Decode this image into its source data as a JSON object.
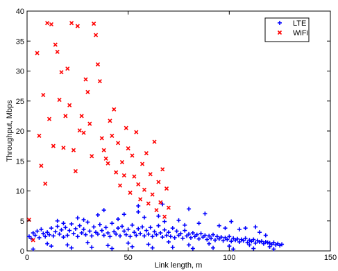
{
  "chart_data": {
    "type": "scatter",
    "xlabel": "Link length, m",
    "ylabel": "Throughput, Mbps",
    "xlim": [
      0,
      150
    ],
    "ylim": [
      0,
      40
    ],
    "xticks": [
      0,
      50,
      100,
      150
    ],
    "yticks": [
      0,
      5,
      10,
      15,
      20,
      25,
      30,
      35,
      40
    ],
    "grid": false,
    "legend_position": "top-right",
    "series": [
      {
        "name": "LTE",
        "marker": "+",
        "color": "#0000ff",
        "points": [
          [
            1,
            2.4
          ],
          [
            2,
            2.1
          ],
          [
            3,
            3.0
          ],
          [
            4,
            2.6
          ],
          [
            5,
            3.3
          ],
          [
            6,
            2.2
          ],
          [
            7,
            3.6
          ],
          [
            8,
            2.9
          ],
          [
            9,
            2.4
          ],
          [
            10,
            3.1
          ],
          [
            11,
            2.7
          ],
          [
            12,
            3.8
          ],
          [
            13,
            2.5
          ],
          [
            14,
            3.2
          ],
          [
            15,
            4.1
          ],
          [
            16,
            2.8
          ],
          [
            17,
            3.5
          ],
          [
            18,
            2.3
          ],
          [
            19,
            3.9
          ],
          [
            20,
            2.6
          ],
          [
            21,
            3.4
          ],
          [
            22,
            4.5
          ],
          [
            23,
            2.9
          ],
          [
            24,
            3.7
          ],
          [
            25,
            2.4
          ],
          [
            26,
            4.2
          ],
          [
            27,
            3.0
          ],
          [
            28,
            3.6
          ],
          [
            29,
            2.7
          ],
          [
            30,
            4.8
          ],
          [
            31,
            3.3
          ],
          [
            32,
            2.5
          ],
          [
            33,
            4.0
          ],
          [
            34,
            3.1
          ],
          [
            35,
            2.8
          ],
          [
            36,
            4.4
          ],
          [
            37,
            3.4
          ],
          [
            38,
            2.6
          ],
          [
            39,
            3.9
          ],
          [
            40,
            3.0
          ],
          [
            41,
            2.4
          ],
          [
            42,
            4.6
          ],
          [
            43,
            3.2
          ],
          [
            44,
            2.8
          ],
          [
            45,
            3.8
          ],
          [
            46,
            2.5
          ],
          [
            47,
            4.1
          ],
          [
            48,
            3.3
          ],
          [
            49,
            2.7
          ],
          [
            50,
            3.6
          ],
          [
            51,
            2.4
          ],
          [
            52,
            4.3
          ],
          [
            53,
            3.1
          ],
          [
            54,
            2.6
          ],
          [
            55,
            3.7
          ],
          [
            56,
            2.9
          ],
          [
            57,
            4.0
          ],
          [
            58,
            2.5
          ],
          [
            59,
            3.4
          ],
          [
            60,
            2.8
          ],
          [
            61,
            3.9
          ],
          [
            62,
            2.4
          ],
          [
            63,
            3.2
          ],
          [
            64,
            2.7
          ],
          [
            65,
            4.2
          ],
          [
            66,
            3.0
          ],
          [
            67,
            2.3
          ],
          [
            68,
            3.5
          ],
          [
            69,
            2.6
          ],
          [
            70,
            3.1
          ],
          [
            71,
            2.4
          ],
          [
            72,
            3.8
          ],
          [
            73,
            2.2
          ],
          [
            74,
            3.3
          ],
          [
            75,
            2.6
          ],
          [
            76,
            2.9
          ],
          [
            77,
            2.1
          ],
          [
            78,
            3.4
          ],
          [
            79,
            2.5
          ],
          [
            80,
            2.8
          ],
          [
            81,
            2.2
          ],
          [
            82,
            3.0
          ],
          [
            83,
            2.4
          ],
          [
            84,
            2.7
          ],
          [
            85,
            2.0
          ],
          [
            86,
            2.9
          ],
          [
            87,
            2.3
          ],
          [
            88,
            2.6
          ],
          [
            89,
            1.9
          ],
          [
            90,
            2.5
          ],
          [
            91,
            2.1
          ],
          [
            92,
            2.7
          ],
          [
            93,
            1.8
          ],
          [
            94,
            2.4
          ],
          [
            95,
            2.0
          ],
          [
            96,
            2.3
          ],
          [
            97,
            1.7
          ],
          [
            98,
            2.2
          ],
          [
            99,
            1.9
          ],
          [
            100,
            2.4
          ],
          [
            101,
            1.6
          ],
          [
            102,
            2.1
          ],
          [
            103,
            1.8
          ],
          [
            104,
            2.0
          ],
          [
            105,
            1.5
          ],
          [
            106,
            1.9
          ],
          [
            107,
            1.7
          ],
          [
            108,
            2.1
          ],
          [
            109,
            1.4
          ],
          [
            110,
            1.8
          ],
          [
            111,
            1.6
          ],
          [
            112,
            1.9
          ],
          [
            113,
            1.3
          ],
          [
            114,
            1.7
          ],
          [
            115,
            1.5
          ],
          [
            116,
            1.6
          ],
          [
            117,
            1.2
          ],
          [
            118,
            1.5
          ],
          [
            119,
            1.4
          ],
          [
            120,
            1.3
          ],
          [
            121,
            1.1
          ],
          [
            122,
            1.4
          ],
          [
            123,
            1.0
          ],
          [
            124,
            1.2
          ],
          [
            125,
            0.9
          ],
          [
            126,
            1.1
          ],
          [
            10,
            1.2
          ],
          [
            20,
            1.0
          ],
          [
            30,
            1.4
          ],
          [
            40,
            0.9
          ],
          [
            50,
            1.3
          ],
          [
            60,
            1.1
          ],
          [
            70,
            1.5
          ],
          [
            80,
            1.0
          ],
          [
            90,
            1.2
          ],
          [
            100,
            0.8
          ],
          [
            110,
            1.0
          ],
          [
            120,
            0.7
          ],
          [
            15,
            5.0
          ],
          [
            25,
            5.5
          ],
          [
            35,
            6.0
          ],
          [
            45,
            5.3
          ],
          [
            55,
            6.5
          ],
          [
            65,
            5.8
          ],
          [
            75,
            5.1
          ],
          [
            85,
            4.6
          ],
          [
            95,
            4.2
          ],
          [
            105,
            3.6
          ],
          [
            115,
            3.1
          ],
          [
            55,
            7.5
          ],
          [
            67,
            7.8
          ],
          [
            80,
            7.0
          ],
          [
            88,
            6.2
          ],
          [
            101,
            4.9
          ],
          [
            108,
            3.8
          ],
          [
            113,
            4.0
          ],
          [
            3,
            0.3
          ],
          [
            12,
            0.8
          ],
          [
            22,
            0.5
          ],
          [
            32,
            0.6
          ],
          [
            42,
            0.4
          ],
          [
            52,
            0.7
          ],
          [
            62,
            0.5
          ],
          [
            72,
            0.6
          ],
          [
            82,
            0.4
          ],
          [
            92,
            0.5
          ],
          [
            102,
            0.3
          ],
          [
            112,
            0.4
          ],
          [
            122,
            0.3
          ],
          [
            18,
            4.6
          ],
          [
            28,
            5.2
          ],
          [
            38,
            6.8
          ],
          [
            48,
            6.1
          ],
          [
            58,
            5.6
          ],
          [
            68,
            4.9
          ],
          [
            78,
            4.3
          ],
          [
            98,
            3.8
          ],
          [
            118,
            2.6
          ]
        ]
      },
      {
        "name": "WiFi",
        "marker": "x",
        "color": "#ff0000",
        "points": [
          [
            1,
            5.2
          ],
          [
            3,
            1.8
          ],
          [
            5,
            33
          ],
          [
            6,
            19.2
          ],
          [
            7,
            14.2
          ],
          [
            8,
            26
          ],
          [
            9,
            11.2
          ],
          [
            10,
            38
          ],
          [
            11,
            22
          ],
          [
            12,
            37.8
          ],
          [
            13,
            17.5
          ],
          [
            14,
            34.4
          ],
          [
            15,
            33.2
          ],
          [
            16,
            25.2
          ],
          [
            17,
            29.8
          ],
          [
            18,
            17.2
          ],
          [
            19,
            22.5
          ],
          [
            20,
            30.4
          ],
          [
            21,
            24.3
          ],
          [
            22,
            38
          ],
          [
            23,
            16.8
          ],
          [
            24,
            13.3
          ],
          [
            25,
            37.5
          ],
          [
            26,
            20.1
          ],
          [
            27,
            22.5
          ],
          [
            28,
            19.7
          ],
          [
            29,
            28.6
          ],
          [
            30,
            26.5
          ],
          [
            31,
            21.2
          ],
          [
            32,
            15.8
          ],
          [
            33,
            37.9
          ],
          [
            34,
            36
          ],
          [
            35,
            31.1
          ],
          [
            36,
            28.3
          ],
          [
            37,
            18.8
          ],
          [
            38,
            16.8
          ],
          [
            39,
            15.4
          ],
          [
            40,
            14.6
          ],
          [
            41,
            21.7
          ],
          [
            42,
            19.2
          ],
          [
            43,
            23.6
          ],
          [
            44,
            13.1
          ],
          [
            45,
            18.0
          ],
          [
            46,
            10.9
          ],
          [
            47,
            14.8
          ],
          [
            48,
            12.6
          ],
          [
            49,
            20.5
          ],
          [
            50,
            17.1
          ],
          [
            51,
            9.7
          ],
          [
            52,
            15.9
          ],
          [
            53,
            12.4
          ],
          [
            54,
            19.8
          ],
          [
            55,
            11.1
          ],
          [
            56,
            8.6
          ],
          [
            57,
            14.5
          ],
          [
            58,
            10.2
          ],
          [
            59,
            16.3
          ],
          [
            60,
            7.9
          ],
          [
            61,
            12.8
          ],
          [
            62,
            9.4
          ],
          [
            63,
            18.2
          ],
          [
            64,
            6.8
          ],
          [
            65,
            11.5
          ],
          [
            66,
            8.1
          ],
          [
            67,
            13.6
          ],
          [
            68,
            5.7
          ],
          [
            69,
            10.4
          ],
          [
            70,
            7.2
          ]
        ]
      }
    ]
  },
  "legend": {
    "items": [
      {
        "label": "LTE",
        "marker": "+",
        "color": "#0000ff"
      },
      {
        "label": "WiFi",
        "marker": "x",
        "color": "#ff0000"
      }
    ]
  }
}
